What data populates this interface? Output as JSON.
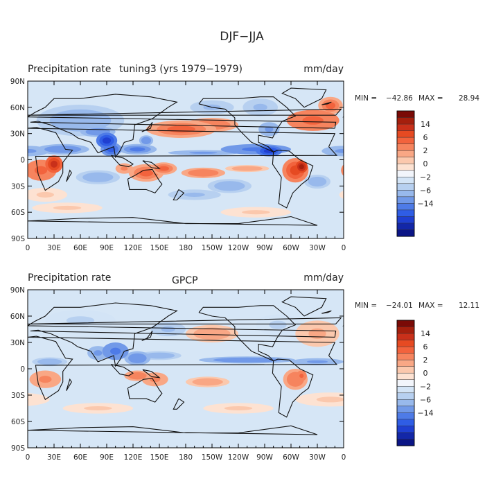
{
  "figure": {
    "title": "DJF−JJA"
  },
  "panels": [
    {
      "title_left": "Precipitation rate",
      "title_center": "tuning3 (yrs 1979−1979)",
      "units": "mm/day",
      "stats": {
        "min_label": "MIN =",
        "min_value": "−42.86",
        "max_label": "MAX =",
        "max_value": "28.94"
      }
    },
    {
      "title_left": "Precipitation rate",
      "title_center": "GPCP",
      "units": "mm/day",
      "stats": {
        "min_label": "MIN =",
        "min_value": "−24.01",
        "max_label": "MAX =",
        "max_value": "12.11"
      }
    }
  ],
  "chart_data": [
    {
      "type": "heatmap",
      "title": "Precipitation rate tuning3 (yrs 1979−1979)",
      "units": "mm/day",
      "min": -42.86,
      "max": 28.94,
      "xlabel": "",
      "ylabel": "",
      "x_ticks": [
        "0",
        "30E",
        "60E",
        "90E",
        "120E",
        "150E",
        "180",
        "150W",
        "120W",
        "90W",
        "60W",
        "30W",
        "0"
      ],
      "y_ticks": [
        "90N",
        "60N",
        "30N",
        "0",
        "30S",
        "60S",
        "90S"
      ],
      "colorbar": {
        "labels": [
          "14",
          "6",
          "2",
          "0",
          "−2",
          "−6",
          "−14"
        ],
        "colors": [
          "#7a0a06",
          "#a51f0d",
          "#c9301a",
          "#e64a22",
          "#f2633d",
          "#f6845e",
          "#f9a785",
          "#fbc8ad",
          "#fde2d2",
          "#f2f5fb",
          "#d3e4f6",
          "#b7d0f0",
          "#98b9ec",
          "#7199e8",
          "#4e7be7",
          "#2f5de5",
          "#1f3fd1",
          "#1327a8",
          "#0b1586"
        ]
      },
      "regions": [
        {
          "lon": 15,
          "lat": -12,
          "rx": 18,
          "ry": 12,
          "v": 7
        },
        {
          "lon": 30,
          "lat": -5,
          "rx": 10,
          "ry": 10,
          "v": 10
        },
        {
          "lon": -55,
          "lat": -12,
          "rx": 15,
          "ry": 14,
          "v": 9
        },
        {
          "lon": -48,
          "lat": -8,
          "rx": 7,
          "ry": 7,
          "v": 15
        },
        {
          "lon": -35,
          "lat": 45,
          "rx": 30,
          "ry": 12,
          "v": 7
        },
        {
          "lon": -15,
          "lat": 62,
          "rx": 14,
          "ry": 10,
          "v": 6
        },
        {
          "lon": 175,
          "lat": 35,
          "rx": 40,
          "ry": 10,
          "v": 6
        },
        {
          "lon": -150,
          "lat": 40,
          "rx": 30,
          "ry": 8,
          "v": 5
        },
        {
          "lon": 135,
          "lat": -15,
          "rx": 20,
          "ry": 10,
          "v": 6
        },
        {
          "lon": 155,
          "lat": -10,
          "rx": 15,
          "ry": 7,
          "v": 6
        },
        {
          "lon": -160,
          "lat": -15,
          "rx": 25,
          "ry": 6,
          "v": 5
        },
        {
          "lon": -110,
          "lat": -10,
          "rx": 25,
          "ry": 4,
          "v": 3
        },
        {
          "lon": 110,
          "lat": -10,
          "rx": 10,
          "ry": 6,
          "v": 4
        },
        {
          "lon": 45,
          "lat": -55,
          "rx": 40,
          "ry": 6,
          "v": 1
        },
        {
          "lon": -100,
          "lat": -60,
          "rx": 40,
          "ry": 6,
          "v": 1
        },
        {
          "lon": 20,
          "lat": -40,
          "rx": 25,
          "ry": 8,
          "v": 1
        },
        {
          "lon": 90,
          "lat": 22,
          "rx": 12,
          "ry": 9,
          "v": -10
        },
        {
          "lon": 95,
          "lat": 12,
          "rx": 12,
          "ry": 8,
          "v": -9
        },
        {
          "lon": 125,
          "lat": 12,
          "rx": 22,
          "ry": 6,
          "v": -6
        },
        {
          "lon": 135,
          "lat": 22,
          "rx": 8,
          "ry": 6,
          "v": -5
        },
        {
          "lon": 40,
          "lat": 12,
          "rx": 30,
          "ry": 6,
          "v": -5
        },
        {
          "lon": 0,
          "lat": 10,
          "rx": 25,
          "ry": 6,
          "v": -4
        },
        {
          "lon": -100,
          "lat": 12,
          "rx": 40,
          "ry": 6,
          "v": -7
        },
        {
          "lon": -85,
          "lat": 10,
          "rx": 15,
          "ry": 6,
          "v": -12
        },
        {
          "lon": -160,
          "lat": 8,
          "rx": 40,
          "ry": 3,
          "v": -4
        },
        {
          "lon": 60,
          "lat": 45,
          "rx": 50,
          "ry": 18,
          "v": -3
        },
        {
          "lon": 80,
          "lat": 32,
          "rx": 20,
          "ry": 6,
          "v": -5
        },
        {
          "lon": -150,
          "lat": 60,
          "rx": 25,
          "ry": 8,
          "v": -2
        },
        {
          "lon": -95,
          "lat": 60,
          "rx": 20,
          "ry": 10,
          "v": -2
        },
        {
          "lon": -85,
          "lat": 35,
          "rx": 12,
          "ry": 8,
          "v": -4
        },
        {
          "lon": 80,
          "lat": -20,
          "rx": 25,
          "ry": 8,
          "v": -3
        },
        {
          "lon": -130,
          "lat": -30,
          "rx": 25,
          "ry": 8,
          "v": -3
        },
        {
          "lon": -30,
          "lat": -25,
          "rx": 15,
          "ry": 8,
          "v": -3
        },
        {
          "lon": -170,
          "lat": -40,
          "rx": 30,
          "ry": 6,
          "v": -2
        }
      ]
    },
    {
      "type": "heatmap",
      "title": "Precipitation rate GPCP",
      "units": "mm/day",
      "min": -24.01,
      "max": 12.11,
      "xlabel": "",
      "ylabel": "",
      "x_ticks": [
        "0",
        "30E",
        "60E",
        "90E",
        "120E",
        "150E",
        "180",
        "150W",
        "120W",
        "90W",
        "60W",
        "30W",
        "0"
      ],
      "y_ticks": [
        "90N",
        "60N",
        "30N",
        "0",
        "30S",
        "60S",
        "90S"
      ],
      "colorbar": {
        "labels": [
          "14",
          "6",
          "2",
          "0",
          "−2",
          "−6",
          "−14"
        ],
        "colors": [
          "#7a0a06",
          "#a51f0d",
          "#c9301a",
          "#e64a22",
          "#f2633d",
          "#f6845e",
          "#f9a785",
          "#fbc8ad",
          "#fde2d2",
          "#f2f5fb",
          "#d3e4f6",
          "#b7d0f0",
          "#98b9ec",
          "#7199e8",
          "#4e7be7",
          "#2f5de5",
          "#1f3fd1",
          "#1327a8",
          "#0b1586"
        ]
      },
      "regions": [
        {
          "lon": 20,
          "lat": -12,
          "rx": 18,
          "ry": 10,
          "v": 4
        },
        {
          "lon": -55,
          "lat": -12,
          "rx": 14,
          "ry": 12,
          "v": 5
        },
        {
          "lon": -48,
          "lat": -8,
          "rx": 6,
          "ry": 6,
          "v": 7
        },
        {
          "lon": 125,
          "lat": -8,
          "rx": 15,
          "ry": 6,
          "v": 5
        },
        {
          "lon": 145,
          "lat": -12,
          "rx": 15,
          "ry": 8,
          "v": 4
        },
        {
          "lon": -155,
          "lat": -15,
          "rx": 25,
          "ry": 6,
          "v": 3
        },
        {
          "lon": -150,
          "lat": 40,
          "rx": 30,
          "ry": 10,
          "v": 3
        },
        {
          "lon": -30,
          "lat": 40,
          "rx": 25,
          "ry": 15,
          "v": 2
        },
        {
          "lon": -15,
          "lat": -35,
          "rx": 40,
          "ry": 8,
          "v": 1
        },
        {
          "lon": 80,
          "lat": -45,
          "rx": 40,
          "ry": 6,
          "v": 1
        },
        {
          "lon": -120,
          "lat": -45,
          "rx": 40,
          "ry": 6,
          "v": 1
        },
        {
          "lon": 100,
          "lat": 20,
          "rx": 15,
          "ry": 10,
          "v": -7
        },
        {
          "lon": 125,
          "lat": 12,
          "rx": 15,
          "ry": 8,
          "v": -5
        },
        {
          "lon": 80,
          "lat": 18,
          "rx": 12,
          "ry": 8,
          "v": -4
        },
        {
          "lon": -110,
          "lat": 10,
          "rx": 55,
          "ry": 4,
          "v": -5
        },
        {
          "lon": -30,
          "lat": 8,
          "rx": 30,
          "ry": 4,
          "v": -4
        },
        {
          "lon": 25,
          "lat": 8,
          "rx": 20,
          "ry": 5,
          "v": -3
        },
        {
          "lon": 150,
          "lat": 15,
          "rx": 25,
          "ry": 5,
          "v": -3
        },
        {
          "lon": 160,
          "lat": 45,
          "rx": 20,
          "ry": 8,
          "v": -2
        },
        {
          "lon": -75,
          "lat": 50,
          "rx": 25,
          "ry": 12,
          "v": -1
        },
        {
          "lon": 60,
          "lat": 55,
          "rx": 40,
          "ry": 12,
          "v": -1
        }
      ]
    }
  ]
}
